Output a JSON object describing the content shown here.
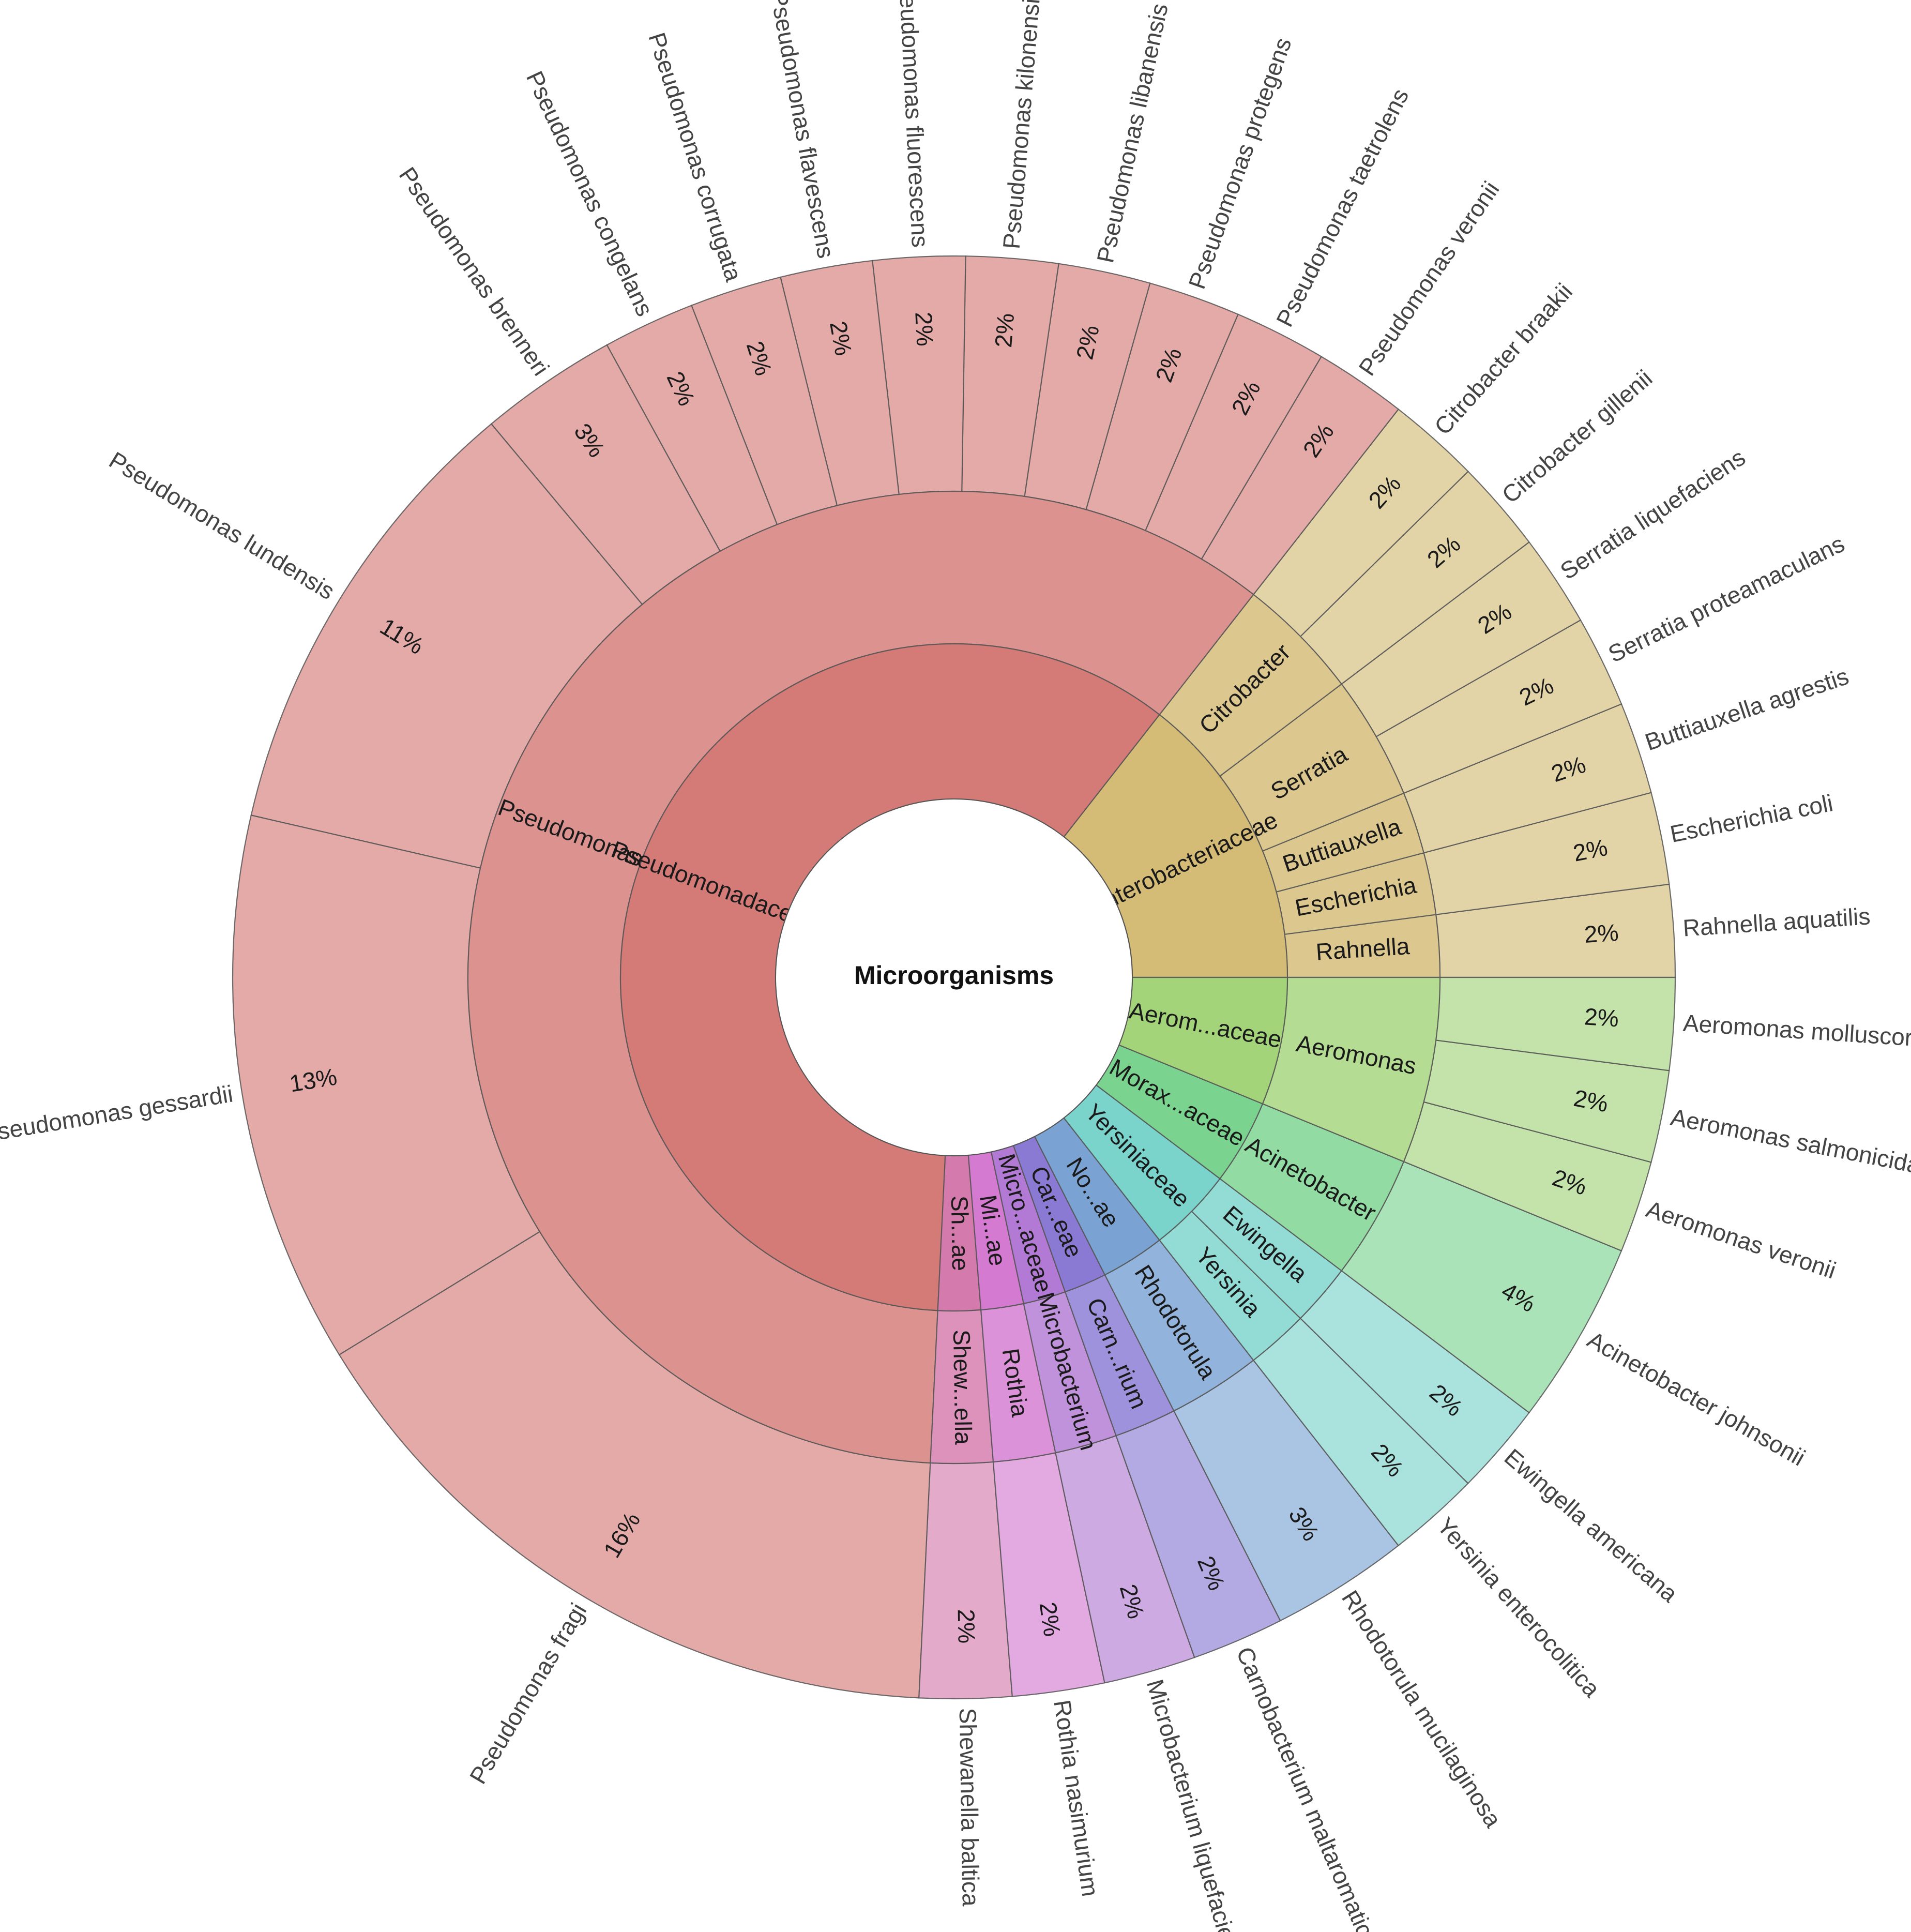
{
  "chart_data": {
    "type": "sunburst",
    "title": "",
    "root": "Microorganisms",
    "start_angle_deg": 0,
    "direction": "counterclockwise",
    "value_unit": "%",
    "colors": {
      "Pseudomonadaceae": "#d47a77",
      "Enterobacteriaceae": "#d4bc77",
      "Aeromonadaceae": "#a3d47a",
      "Moraxellaceae": "#7ad48f",
      "Yersiniaceae": "#7ad4cc",
      "Nocardiaceae": "#7aa3d4",
      "Carnobacteriaceae": "#8a7ad4",
      "Microbacteriaceae": "#b27ad4",
      "Micrococcaceae": "#d47ad1",
      "Shewanellaceae": "#d47aac"
    },
    "families": [
      {
        "name": "Enterobacteriaceae",
        "label": "Enterobacteriaceae",
        "genera": [
          {
            "name": "Rahnella",
            "label": "Rahnella",
            "species": [
              {
                "name": "Rahnella aquatilis",
                "pct": "2%",
                "value": 2.2
              }
            ]
          },
          {
            "name": "Escherichia",
            "label": "Escherichia",
            "species": [
              {
                "name": "Escherichia coli",
                "pct": "2%",
                "value": 2.2
              }
            ]
          },
          {
            "name": "Buttiauxella",
            "label": "Buttiauxella",
            "species": [
              {
                "name": "Buttiauxella agrestis",
                "pct": "2%",
                "value": 2.2
              }
            ]
          },
          {
            "name": "Serratia",
            "label": "Serratia",
            "species": [
              {
                "name": "Serratia proteamaculans",
                "pct": "2%",
                "value": 2.2
              },
              {
                "name": "Serratia liquefaciens",
                "pct": "2%",
                "value": 2.2
              }
            ]
          },
          {
            "name": "Citrobacter",
            "label": "Citrobacter",
            "species": [
              {
                "name": "Citrobacter gillenii",
                "pct": "2%",
                "value": 2.2
              },
              {
                "name": "Citrobacter braakii",
                "pct": "2%",
                "value": 2.2
              }
            ]
          }
        ]
      },
      {
        "name": "Pseudomonadaceae",
        "label": "Pseudomonadaceae",
        "genera": [
          {
            "name": "Pseudomonas",
            "label": "Pseudomonas",
            "species": [
              {
                "name": "Pseudomonas veronii",
                "pct": "2%",
                "value": 2.2
              },
              {
                "name": "Pseudomonas taetrolens",
                "pct": "2%",
                "value": 2.2
              },
              {
                "name": "Pseudomonas protegens",
                "pct": "2%",
                "value": 2.2
              },
              {
                "name": "Pseudomonas libanensis",
                "pct": "2%",
                "value": 2.2
              },
              {
                "name": "Pseudomonas kilonensis",
                "pct": "2%",
                "value": 2.2
              },
              {
                "name": "Pseudomonas fluorescens",
                "pct": "2%",
                "value": 2.2
              },
              {
                "name": "Pseudomonas flavescens",
                "pct": "2%",
                "value": 2.2
              },
              {
                "name": "Pseudomonas corrugata",
                "pct": "2%",
                "value": 2.2
              },
              {
                "name": "Pseudomonas congelans",
                "pct": "2%",
                "value": 2.2
              },
              {
                "name": "Pseudomonas brenneri",
                "pct": "3%",
                "value": 3.3
              },
              {
                "name": "Pseudomonas lundensis",
                "pct": "11%",
                "value": 11.0
              },
              {
                "name": "Pseudomonas gessardii",
                "pct": "13%",
                "value": 13.2
              },
              {
                "name": "Pseudomonas fragi",
                "pct": "16%",
                "value": 16.5
              }
            ]
          }
        ]
      },
      {
        "name": "Shewanellaceae",
        "label": "Sh...ae",
        "genera": [
          {
            "name": "Shewanella",
            "label": "Shew...ella",
            "species": [
              {
                "name": "Shewanella baltica",
                "pct": "2%",
                "value": 2.2
              }
            ]
          }
        ]
      },
      {
        "name": "Micrococcaceae",
        "label": "Mi...ae",
        "genera": [
          {
            "name": "Rothia",
            "label": "Rothia",
            "species": [
              {
                "name": "Rothia nasimurium",
                "pct": "2%",
                "value": 2.2
              }
            ]
          }
        ]
      },
      {
        "name": "Microbacteriaceae",
        "label": "Micro...aceae",
        "genera": [
          {
            "name": "Microbacterium",
            "label": "Microbacterium",
            "species": [
              {
                "name": "Microbacterium liquefaciens",
                "pct": "2%",
                "value": 2.2
              }
            ]
          }
        ]
      },
      {
        "name": "Carnobacteriaceae",
        "label": "Car...eae",
        "genera": [
          {
            "name": "Carnobacterium",
            "label": "Carn...rium",
            "species": [
              {
                "name": "Carnobacterium maltaromaticum",
                "pct": "2%",
                "value": 2.2
              }
            ]
          }
        ]
      },
      {
        "name": "Nocardiaceae",
        "label": "No...ae",
        "genera": [
          {
            "name": "Rhodotorula",
            "label": "Rhodotorula",
            "species": [
              {
                "name": "Rhodotorula mucilaginosa",
                "pct": "3%",
                "value": 3.3
              }
            ]
          }
        ]
      },
      {
        "name": "Yersiniaceae",
        "label": "Yersiniaceae",
        "genera": [
          {
            "name": "Yersinia",
            "label": "Yersinia",
            "species": [
              {
                "name": "Yersinia enterocolitica",
                "pct": "2%",
                "value": 2.2
              }
            ]
          },
          {
            "name": "Ewingella",
            "label": "Ewingella",
            "species": [
              {
                "name": "Ewingella americana",
                "pct": "2%",
                "value": 2.2
              }
            ]
          }
        ]
      },
      {
        "name": "Moraxellaceae",
        "label": "Morax...aceae",
        "genera": [
          {
            "name": "Acinetobacter",
            "label": "Acinetobacter",
            "species": [
              {
                "name": "Acinetobacter johnsonii",
                "pct": "4%",
                "value": 4.4
              }
            ]
          }
        ]
      },
      {
        "name": "Aeromonadaceae",
        "label": "Aerom...aceae",
        "genera": [
          {
            "name": "Aeromonas",
            "label": "Aeromonas",
            "species": [
              {
                "name": "Aeromonas veronii",
                "pct": "2%",
                "value": 2.2
              },
              {
                "name": "Aeromonas salmonicida",
                "pct": "2%",
                "value": 2.2
              },
              {
                "name": "Aeromonas molluscorum",
                "pct": "2%",
                "value": 2.2
              }
            ]
          }
        ]
      }
    ]
  }
}
